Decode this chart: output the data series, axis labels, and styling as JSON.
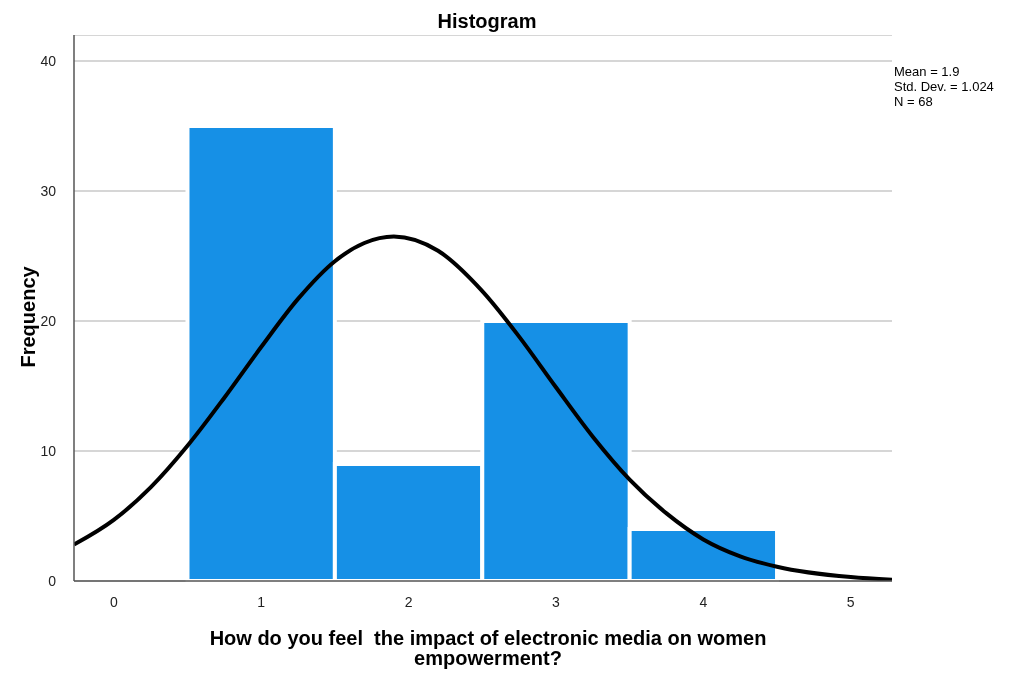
{
  "chart_data": {
    "type": "histogram",
    "title": "Histogram",
    "xlabel": "How do you feel  the impact of electronic media on women empowerment?",
    "ylabel": "Frequency",
    "bins": [
      0.5,
      1.5,
      2.5,
      3.5,
      4.5
    ],
    "values": [
      35,
      9,
      20,
      4
    ],
    "color": "#1690e6",
    "series": [
      {
        "type": "line",
        "color": "#000000",
        "x": [
          -0.27,
          0,
          0.25,
          0.5,
          0.75,
          1,
          1.25,
          1.5,
          1.7,
          1.9,
          2.2,
          2.5,
          2.75,
          3,
          3.25,
          3.5,
          3.75,
          4,
          4.25,
          4.5,
          5,
          5.28
        ],
        "values": [
          2.8,
          4.7,
          7.2,
          10.4,
          14.1,
          18,
          21.7,
          24.6,
          26,
          26.5,
          25.4,
          22.3,
          18.8,
          14.9,
          11.1,
          7.8,
          5.2,
          3.2,
          1.9,
          1.1,
          0.3,
          0.1
        ]
      }
    ],
    "annotations": [
      "Mean = 1.9",
      "Std. Dev. = 1.024",
      "N = 68"
    ],
    "xlim": [
      -0.27,
      5.28
    ],
    "xticks": [
      0,
      1,
      2,
      3,
      4,
      5
    ],
    "ylim": [
      0,
      42
    ],
    "yticks": [
      0,
      10,
      20,
      30,
      40
    ],
    "grid": "y",
    "marker": "none",
    "line_style": "solid"
  }
}
